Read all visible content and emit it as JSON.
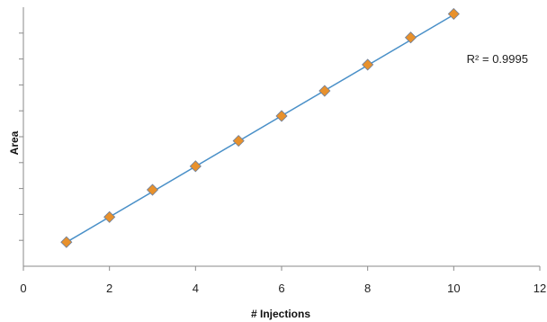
{
  "chart_data": {
    "type": "scatter",
    "title": "",
    "xlabel": "# Injections",
    "ylabel": "Area",
    "xlim": [
      0,
      12
    ],
    "ylim": [
      0,
      10
    ],
    "x_ticks": [
      0,
      2,
      4,
      6,
      8,
      10,
      12
    ],
    "y_ticks_unlabeled": [
      1,
      2,
      3,
      4,
      5,
      6,
      7,
      8,
      9
    ],
    "grid": false,
    "legend": "none",
    "series": [
      {
        "marker": "diamond",
        "marker_color": "#E8912C",
        "marker_edge_color": "#6E7F9A",
        "x": [
          1,
          2,
          3,
          4,
          5,
          6,
          7,
          8,
          9,
          10
        ],
        "y": [
          0.93,
          1.9,
          2.95,
          3.86,
          4.84,
          5.8,
          6.77,
          7.78,
          8.83,
          9.74
        ]
      }
    ],
    "trendline": {
      "type": "linear",
      "color": "#4A90C8",
      "slope": 0.976,
      "intercept": -0.05
    },
    "annotation": {
      "text": "R² = 0.9995",
      "anchor_x": 10.3,
      "anchor_y": 7.85
    }
  }
}
